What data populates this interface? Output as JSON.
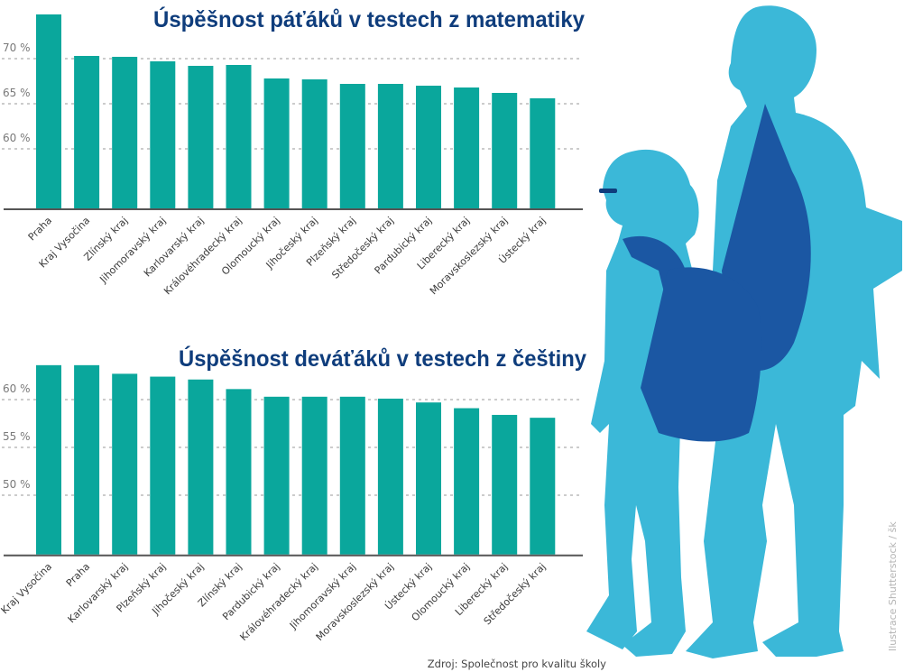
{
  "colors": {
    "bar": "#0aa79c",
    "title": "#0f3d7c",
    "silhouette": "#3bb8d8",
    "bag": "#1b57a3",
    "grid": "#9a9a9a",
    "axis": "#555555"
  },
  "chart_data": [
    {
      "type": "bar",
      "title": "Úspěšnost páťáků v testech z matematiky",
      "xlabel": "",
      "ylabel": "",
      "categories": [
        "Praha",
        "Kraj Vysočina",
        "Zlínský kraj",
        "Jihomoravský kraj",
        "Karlovarský kraj",
        "Královéhradecký kraj",
        "Olomoucký kraj",
        "Jihočeský kraj",
        "Plzeňský kraj",
        "Středočeský kraj",
        "Pardubický kraj",
        "Liberecký kraj",
        "Moravskoslezský kraj",
        "Ústecký kraj"
      ],
      "values": [
        74.9,
        70.3,
        70.2,
        69.7,
        69.2,
        69.3,
        67.8,
        67.7,
        67.2,
        67.2,
        67.0,
        66.8,
        66.2,
        65.6
      ],
      "yticks": [
        {
          "value": 70,
          "label": "70 %"
        },
        {
          "value": 65,
          "label": "65 %"
        },
        {
          "value": 60,
          "label": "60 %"
        }
      ],
      "ylim": [
        53.4,
        76
      ],
      "grid": true
    },
    {
      "type": "bar",
      "title": "Úspěšnost deváťáků v testech z češtiny",
      "xlabel": "",
      "ylabel": "",
      "categories": [
        "Kraj Vysočina",
        "Praha",
        "Karlovarský kraj",
        "Plzeňský kraj",
        "Jihočeský kraj",
        "Zlínský kraj",
        "Pardubický kraj",
        "Královéhradecký kraj",
        "Jihomoravský kraj",
        "Moravskoslezský kraj",
        "Ústecký kraj",
        "Olomoucký kraj",
        "Liberecký kraj",
        "Středočeský kraj"
      ],
      "values": [
        63.6,
        63.6,
        62.7,
        62.4,
        62.1,
        61.1,
        60.3,
        60.3,
        60.3,
        60.1,
        59.7,
        59.1,
        58.4,
        58.1
      ],
      "yticks": [
        {
          "value": 60,
          "label": "60 %"
        },
        {
          "value": 55,
          "label": "55 %"
        },
        {
          "value": 50,
          "label": "50 %"
        }
      ],
      "ylim": [
        43.8,
        64.5
      ],
      "grid": true
    }
  ],
  "source": "Zdroj: Společnost pro kvalitu školy",
  "credit": "Ilustrace Shutterstock / šk"
}
